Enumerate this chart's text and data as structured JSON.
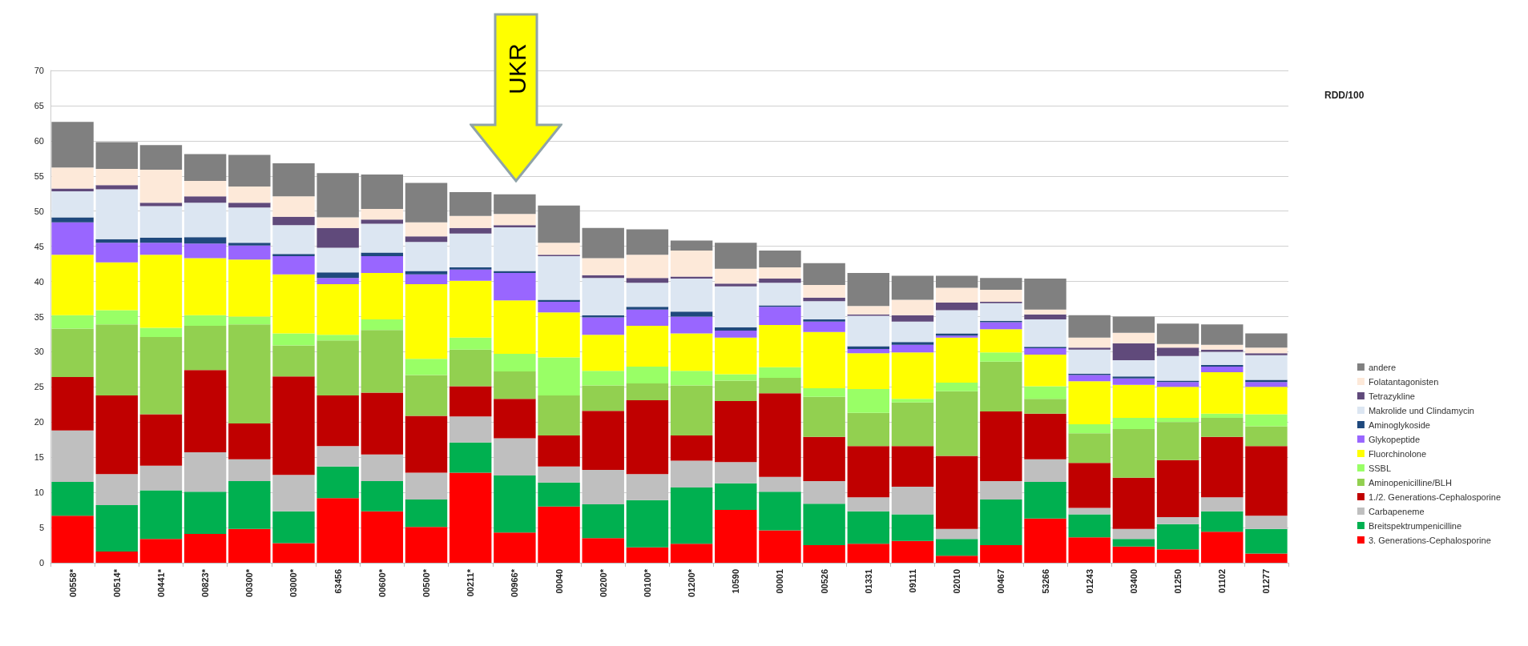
{
  "chart_data": {
    "type": "bar",
    "stacked": true,
    "categories": [
      "00558*",
      "00514*",
      "00441*",
      "00823*",
      "00300*",
      "03000*",
      "63456",
      "00600*",
      "00500*",
      "00211*",
      "00966*",
      "00040",
      "00200*",
      "00100*",
      "01200*",
      "10590",
      "00001",
      "00526",
      "01331",
      "09111",
      "02010",
      "00467",
      "53266",
      "01243",
      "03400",
      "01250",
      "01102",
      "01277"
    ],
    "series": [
      {
        "name": "3. Generations-Cephalosporine",
        "color": "#ff0000",
        "values": [
          6.7,
          1.6,
          3.4,
          4.1,
          4.8,
          2.8,
          9.2,
          7.3,
          5.1,
          12.8,
          4.3,
          8.0,
          3.5,
          2.2,
          2.7,
          7.5,
          4.6,
          2.5,
          2.7,
          3.1,
          1.0,
          2.5,
          6.3,
          3.6,
          2.3,
          1.9,
          4.4,
          1.3
        ]
      },
      {
        "name": "Breitspektrumpenicilline",
        "color": "#00b050",
        "values": [
          4.8,
          6.6,
          6.9,
          6.0,
          6.8,
          4.5,
          4.5,
          4.3,
          3.9,
          4.3,
          8.1,
          3.4,
          4.8,
          6.7,
          8.0,
          3.8,
          5.5,
          5.9,
          4.6,
          3.8,
          2.4,
          6.5,
          5.2,
          3.3,
          1.1,
          3.6,
          2.9,
          3.5
        ]
      },
      {
        "name": "Carbapeneme",
        "color": "#bfbfbf",
        "values": [
          7.3,
          4.4,
          3.5,
          5.6,
          3.1,
          5.2,
          2.9,
          3.8,
          3.8,
          3.7,
          5.3,
          2.3,
          4.9,
          3.7,
          3.8,
          3.0,
          2.1,
          3.2,
          2.0,
          3.9,
          1.4,
          2.6,
          3.2,
          0.9,
          1.4,
          1.0,
          2.0,
          1.9
        ]
      },
      {
        "name": "1./2. Generations-Cephalosporine",
        "color": "#c00000",
        "values": [
          7.6,
          11.2,
          7.3,
          11.7,
          5.1,
          14.0,
          7.2,
          8.8,
          8.1,
          4.3,
          5.6,
          4.4,
          8.4,
          10.5,
          3.6,
          8.7,
          11.9,
          6.3,
          7.3,
          5.8,
          10.4,
          9.9,
          6.5,
          6.4,
          7.3,
          8.1,
          8.6,
          9.9
        ]
      },
      {
        "name": "Aminopenicilline/BLH",
        "color": "#92d050",
        "values": [
          6.9,
          10.1,
          11.0,
          6.3,
          14.1,
          4.4,
          7.8,
          8.9,
          5.8,
          5.2,
          3.9,
          5.7,
          3.6,
          2.4,
          7.1,
          2.9,
          2.2,
          5.7,
          4.7,
          6.2,
          9.2,
          7.1,
          2.1,
          4.2,
          6.9,
          5.4,
          2.7,
          2.8
        ]
      },
      {
        "name": "SSBL",
        "color": "#99ff66",
        "values": [
          1.9,
          2.0,
          1.3,
          1.5,
          1.1,
          1.7,
          0.8,
          1.5,
          2.3,
          1.7,
          2.5,
          5.4,
          2.1,
          2.4,
          2.1,
          0.9,
          1.5,
          1.2,
          3.4,
          0.5,
          1.2,
          1.3,
          1.8,
          1.3,
          1.6,
          0.6,
          0.6,
          1.7
        ]
      },
      {
        "name": "Fluorchinolone",
        "color": "#ffff00",
        "values": [
          8.6,
          6.8,
          10.4,
          8.1,
          8.1,
          8.4,
          7.2,
          6.6,
          10.6,
          8.1,
          7.6,
          6.4,
          5.1,
          5.8,
          5.3,
          5.2,
          6.0,
          8.0,
          5.1,
          6.6,
          6.4,
          3.3,
          4.5,
          6.1,
          4.7,
          4.4,
          5.9,
          3.9
        ]
      },
      {
        "name": "Glykopeptide",
        "color": "#9966ff",
        "values": [
          4.6,
          2.8,
          1.7,
          2.1,
          2.0,
          2.6,
          0.9,
          2.4,
          1.4,
          1.6,
          3.9,
          1.5,
          2.5,
          2.3,
          2.4,
          1.0,
          2.6,
          1.5,
          0.6,
          1.1,
          0.3,
          1.0,
          0.9,
          0.9,
          0.9,
          0.7,
          0.8,
          0.7
        ]
      },
      {
        "name": "Aminoglykoside",
        "color": "#1f497d",
        "values": [
          0.7,
          0.5,
          0.7,
          0.9,
          0.4,
          0.3,
          0.8,
          0.5,
          0.5,
          0.3,
          0.3,
          0.3,
          0.3,
          0.4,
          0.7,
          0.5,
          0.2,
          0.3,
          0.4,
          0.4,
          0.3,
          0.2,
          0.2,
          0.2,
          0.3,
          0.2,
          0.2,
          0.3
        ]
      },
      {
        "name": "Makrolide und Clindamycin",
        "color": "#dce6f2",
        "values": [
          3.7,
          7.1,
          4.5,
          4.9,
          5.0,
          4.1,
          3.5,
          4.1,
          4.1,
          4.8,
          6.2,
          6.2,
          5.3,
          3.4,
          4.7,
          5.8,
          3.2,
          2.6,
          4.3,
          2.9,
          3.3,
          2.5,
          3.9,
          3.4,
          2.3,
          3.5,
          1.9,
          3.5
        ]
      },
      {
        "name": "Tetrazykline",
        "color": "#604a7b",
        "values": [
          0.4,
          0.6,
          0.5,
          0.9,
          0.7,
          1.2,
          2.8,
          0.6,
          0.8,
          0.8,
          0.3,
          0.2,
          0.4,
          0.7,
          0.3,
          0.4,
          0.6,
          0.5,
          0.2,
          0.9,
          1.1,
          0.2,
          0.7,
          0.3,
          2.4,
          1.2,
          0.3,
          0.3
        ]
      },
      {
        "name": "Folatantagonisten",
        "color": "#fde9d9",
        "values": [
          3.0,
          2.3,
          4.7,
          2.2,
          2.3,
          2.9,
          1.5,
          1.5,
          2.0,
          1.7,
          1.6,
          1.7,
          2.4,
          3.3,
          3.7,
          2.1,
          1.6,
          1.8,
          1.2,
          2.2,
          2.1,
          1.7,
          0.7,
          1.4,
          1.5,
          0.5,
          0.7,
          0.8
        ]
      },
      {
        "name": "andere",
        "color": "#808080",
        "values": [
          6.5,
          3.8,
          3.5,
          3.8,
          4.5,
          4.7,
          6.3,
          4.9,
          5.6,
          3.4,
          2.8,
          5.3,
          4.3,
          3.6,
          1.4,
          3.7,
          2.4,
          3.1,
          4.7,
          3.4,
          1.7,
          1.7,
          4.4,
          3.2,
          2.3,
          2.9,
          2.9,
          2.0
        ]
      }
    ],
    "ylim": [
      0,
      70
    ],
    "yticks": [
      0,
      5,
      10,
      15,
      20,
      25,
      30,
      35,
      40,
      45,
      50,
      55,
      60,
      65,
      70
    ],
    "grid": "y",
    "legend": "right",
    "annotations": [
      "UKR",
      "RDD/100"
    ]
  }
}
